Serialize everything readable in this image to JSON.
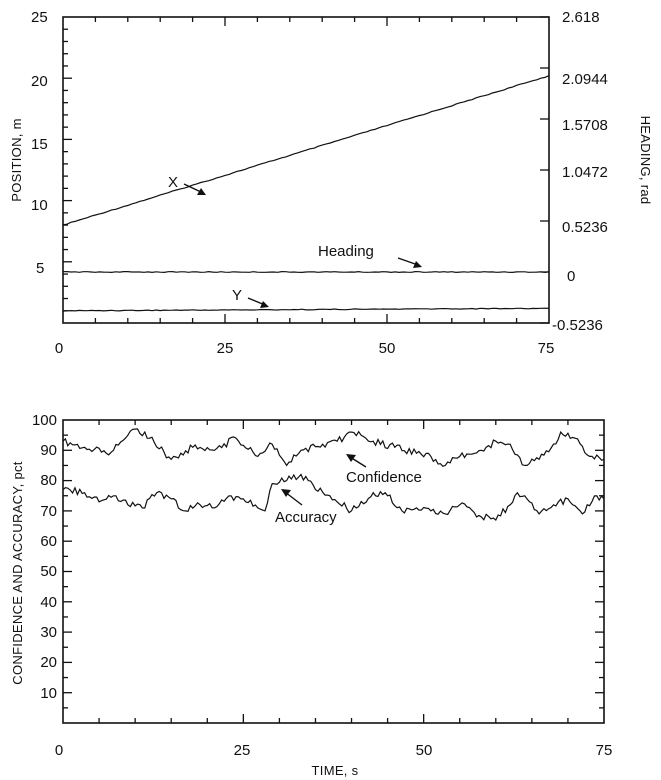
{
  "chart_data": [
    {
      "type": "line",
      "ylabel": "POSITION, m",
      "y2label": "HEADING, rad",
      "xlim": [
        0,
        75
      ],
      "ylim": [
        0,
        25
      ],
      "y2lim": [
        -0.5236,
        2.618
      ],
      "x_ticks": [
        "0",
        "25",
        "50",
        "75"
      ],
      "y_ticks": [
        "5",
        "10",
        "15",
        "20",
        "25"
      ],
      "y2_ticks": [
        "-0.5236",
        "0",
        "0.5236",
        "1.0472",
        "1.5708",
        "2.0944",
        "2.618"
      ],
      "grid": false,
      "series": [
        {
          "name": "X",
          "axis": "left",
          "x": [
            0,
            75
          ],
          "y": [
            8.0,
            20.2
          ]
        },
        {
          "name": "Heading",
          "axis": "right",
          "x": [
            0,
            75
          ],
          "y": [
            0.0,
            0.0
          ]
        },
        {
          "name": "Y",
          "axis": "left",
          "x": [
            0,
            75
          ],
          "y": [
            1.0,
            1.2
          ]
        }
      ],
      "annotations": [
        "X",
        "Heading",
        "Y"
      ]
    },
    {
      "type": "line",
      "xlabel": "TIME, s",
      "ylabel": "CONFIDENCE AND ACCURACY, pct",
      "xlim": [
        0,
        75
      ],
      "ylim": [
        0,
        100
      ],
      "x_ticks": [
        "0",
        "25",
        "50",
        "75"
      ],
      "y_ticks": [
        "10",
        "20",
        "30",
        "40",
        "50",
        "60",
        "70",
        "80",
        "90",
        "100"
      ],
      "grid": false,
      "series": [
        {
          "name": "Confidence",
          "x": [
            0,
            3,
            6,
            9,
            10,
            12,
            15,
            18,
            21,
            24,
            27,
            29,
            31,
            33,
            36,
            38,
            40,
            43,
            46,
            49,
            51,
            53,
            55,
            58,
            60,
            62,
            64,
            66,
            68,
            69,
            71,
            73,
            75
          ],
          "y": [
            93,
            91,
            89,
            95,
            97,
            94,
            87,
            91,
            90,
            94,
            88,
            92,
            85,
            90,
            92,
            93,
            96,
            93,
            91,
            89,
            88,
            85,
            88,
            90,
            93,
            92,
            85,
            87,
            92,
            96,
            94,
            88,
            87
          ]
        },
        {
          "name": "Accuracy",
          "x": [
            0,
            3,
            5,
            7,
            9,
            11,
            13,
            15,
            17,
            19,
            21,
            23,
            25,
            27,
            28,
            29,
            31,
            33,
            34,
            35,
            37,
            38,
            40,
            43,
            45,
            47,
            49,
            51,
            53,
            55,
            58,
            60,
            62,
            63,
            64,
            66,
            68,
            70,
            72,
            74,
            75
          ],
          "y": [
            77,
            76,
            73,
            75,
            72,
            71,
            76,
            74,
            70,
            72,
            71,
            75,
            74,
            71,
            70,
            79,
            80,
            82,
            80,
            77,
            75,
            73,
            70,
            76,
            75,
            70,
            71,
            70,
            69,
            72,
            68,
            67,
            72,
            76,
            75,
            69,
            72,
            74,
            69,
            75,
            74
          ]
        }
      ],
      "annotations": [
        "Confidence",
        "Accuracy"
      ]
    }
  ]
}
